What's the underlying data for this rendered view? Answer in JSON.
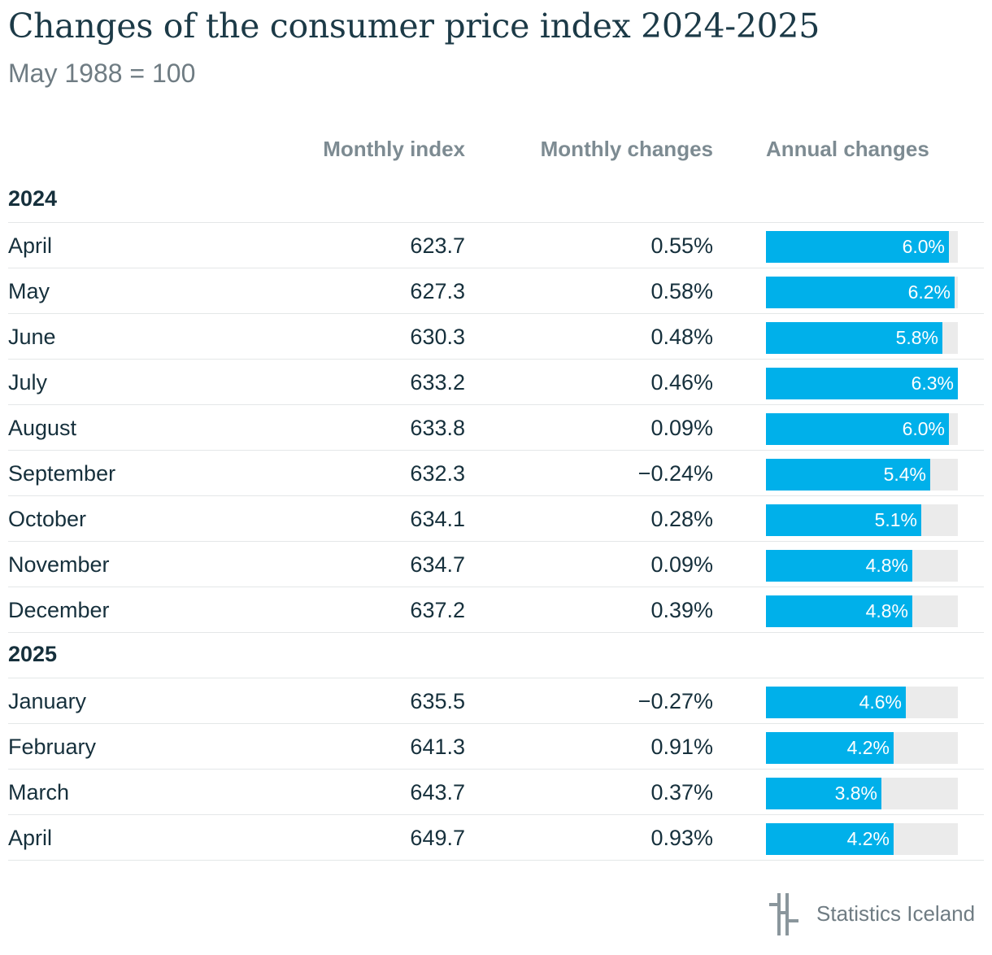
{
  "title": "Changes of the consumer price index 2024-2025",
  "subtitle": "May 1988 = 100",
  "headers": {
    "index": "Monthly index",
    "monthly": "Monthly changes",
    "annual": "Annual changes"
  },
  "colors": {
    "bar": "#00b0ea",
    "track": "#ebebeb",
    "text": "#16303c"
  },
  "logo": {
    "text": "Statistics Iceland"
  },
  "chart_data": {
    "type": "table",
    "title": "Changes of the consumer price index 2024-2025",
    "subtitle": "May 1988 = 100",
    "columns": [
      "Monthly index",
      "Monthly changes",
      "Annual changes"
    ],
    "annual_bar_max": 6.3,
    "groups": [
      {
        "label": "2024",
        "rows": [
          {
            "month": "April",
            "index": "623.7",
            "monthly": "0.55%",
            "annual": "6.0%",
            "annual_value": 6.0
          },
          {
            "month": "May",
            "index": "627.3",
            "monthly": "0.58%",
            "annual": "6.2%",
            "annual_value": 6.2
          },
          {
            "month": "June",
            "index": "630.3",
            "monthly": "0.48%",
            "annual": "5.8%",
            "annual_value": 5.8
          },
          {
            "month": "July",
            "index": "633.2",
            "monthly": "0.46%",
            "annual": "6.3%",
            "annual_value": 6.3
          },
          {
            "month": "August",
            "index": "633.8",
            "monthly": "0.09%",
            "annual": "6.0%",
            "annual_value": 6.0
          },
          {
            "month": "September",
            "index": "632.3",
            "monthly": "−0.24%",
            "annual": "5.4%",
            "annual_value": 5.4
          },
          {
            "month": "October",
            "index": "634.1",
            "monthly": "0.28%",
            "annual": "5.1%",
            "annual_value": 5.1
          },
          {
            "month": "November",
            "index": "634.7",
            "monthly": "0.09%",
            "annual": "4.8%",
            "annual_value": 4.8
          },
          {
            "month": "December",
            "index": "637.2",
            "monthly": "0.39%",
            "annual": "4.8%",
            "annual_value": 4.8
          }
        ]
      },
      {
        "label": "2025",
        "rows": [
          {
            "month": "January",
            "index": "635.5",
            "monthly": "−0.27%",
            "annual": "4.6%",
            "annual_value": 4.6
          },
          {
            "month": "February",
            "index": "641.3",
            "monthly": "0.91%",
            "annual": "4.2%",
            "annual_value": 4.2
          },
          {
            "month": "March",
            "index": "643.7",
            "monthly": "0.37%",
            "annual": "3.8%",
            "annual_value": 3.8
          },
          {
            "month": "April",
            "index": "649.7",
            "monthly": "0.93%",
            "annual": "4.2%",
            "annual_value": 4.2
          }
        ]
      }
    ]
  }
}
